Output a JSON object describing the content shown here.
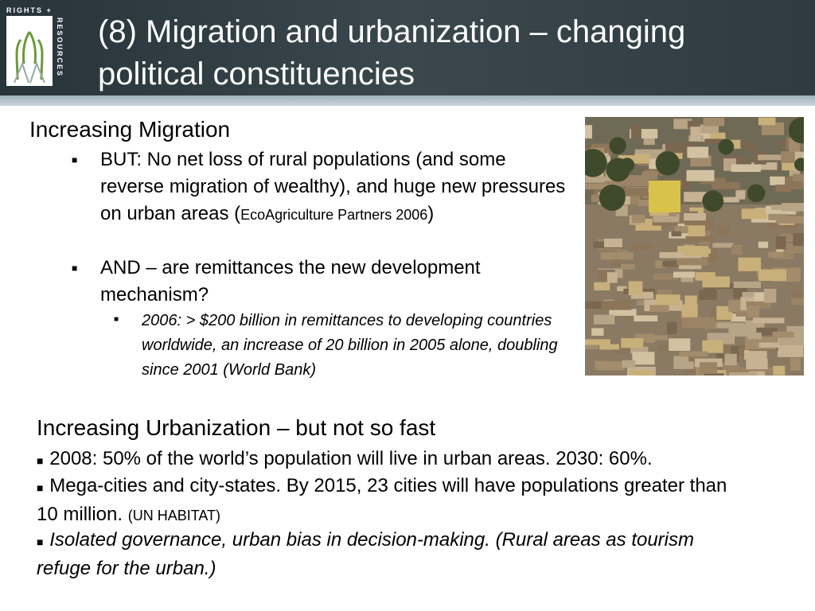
{
  "header": {
    "logo": {
      "top": "RIGHTS +",
      "side": "RESOURCES"
    },
    "title": "(8) Migration and urbanization – changing political constituencies"
  },
  "sections": [
    {
      "heading": "Increasing Migration",
      "bullets": [
        {
          "parts": [
            "BUT: No net loss of rural populations (and some reverse migration of wealthy), and huge new pressures on urban areas (",
            "EcoAgriculture Partners 2006",
            ")"
          ]
        },
        {
          "parts": [
            "AND – are remittances the new development mechanism?"
          ],
          "sub": [
            "2006: > $200 billion in remittances to developing countries worldwide, an increase of 20 billion in 2005 alone, doubling since 2001 (World Bank)"
          ]
        }
      ]
    },
    {
      "heading": "Increasing Urbanization – but not so fast",
      "bullets": [
        {
          "parts": [
            "2008: 50% of the world’s population will live in urban areas.  2030: 60%."
          ]
        },
        {
          "parts": [
            "Mega-cities and city-states.  By 2015, 23 cities will have populations greater than 10 million. ",
            "(UN HABITAT)"
          ]
        },
        {
          "parts": [
            "Isolated governance, urban bias in decision-making. (Rural areas as tourism refuge for the urban.)"
          ]
        }
      ]
    }
  ]
}
